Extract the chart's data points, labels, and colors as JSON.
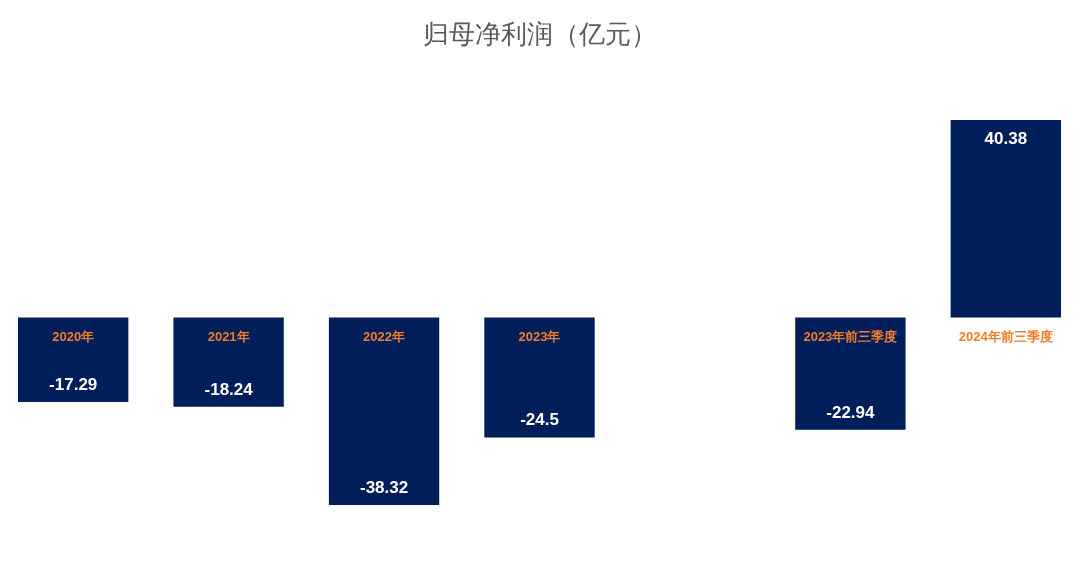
{
  "chart_data": {
    "type": "bar",
    "title": "归母净利润（亿元）",
    "categories": [
      "2020年",
      "2021年",
      "2022年",
      "2023年",
      null,
      "2023年前三季度",
      "2024年前三季度"
    ],
    "values": [
      -17.29,
      -18.24,
      -38.32,
      -24.5,
      null,
      -22.94,
      40.38
    ],
    "color": "#001e5a",
    "data_labels": true
  }
}
